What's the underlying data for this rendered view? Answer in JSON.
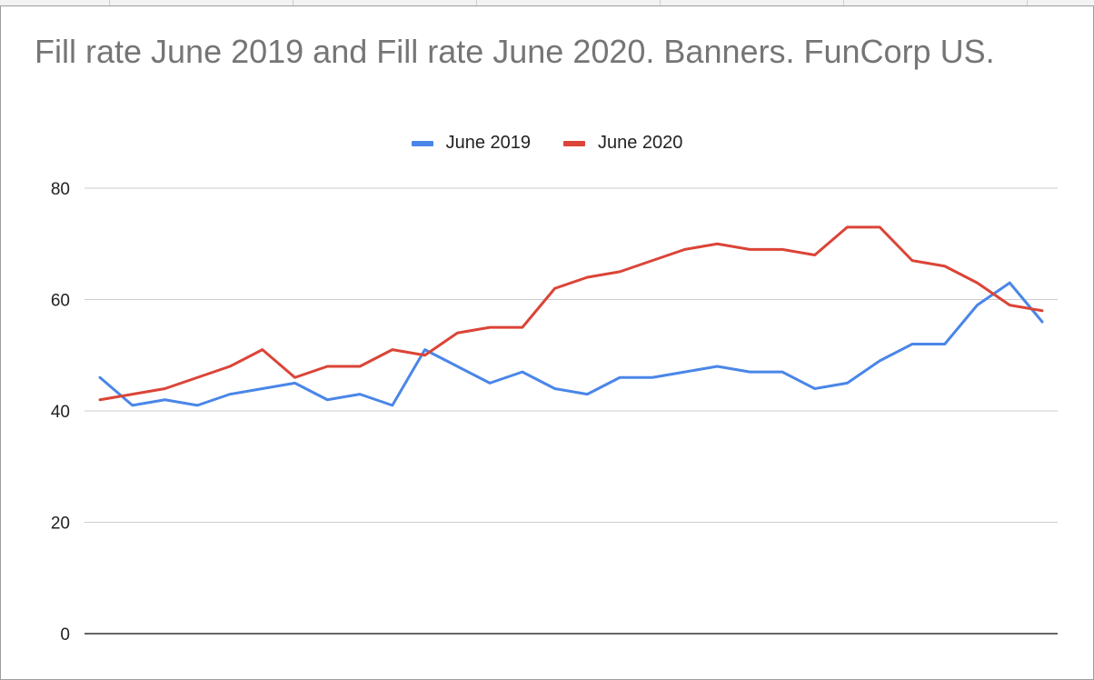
{
  "chart_data": {
    "type": "line",
    "title": "Fill rate June 2019 and Fill rate June 2020. Banners. FunCorp US.",
    "xlabel": "",
    "ylabel": "",
    "ylim": [
      0,
      80
    ],
    "yticks": [
      0,
      20,
      40,
      60,
      80
    ],
    "grid": true,
    "legend_position": "top",
    "x": [
      1,
      2,
      3,
      4,
      5,
      6,
      7,
      8,
      9,
      10,
      11,
      12,
      13,
      14,
      15,
      16,
      17,
      18,
      19,
      20,
      21,
      22,
      23,
      24,
      25,
      26,
      27,
      28,
      29,
      30
    ],
    "series": [
      {
        "name": "June 2019",
        "color": "#4a86e8",
        "values": [
          46,
          41,
          42,
          41,
          43,
          44,
          45,
          42,
          43,
          41,
          51,
          48,
          45,
          47,
          44,
          43,
          46,
          46,
          47,
          48,
          47,
          47,
          44,
          45,
          49,
          52,
          52,
          59,
          63,
          56
        ]
      },
      {
        "name": "June 2020",
        "color": "#db4437",
        "values": [
          42,
          43,
          44,
          46,
          48,
          51,
          46,
          48,
          48,
          51,
          50,
          54,
          55,
          55,
          62,
          64,
          65,
          67,
          69,
          70,
          69,
          69,
          68,
          73,
          73,
          67,
          66,
          63,
          59,
          58
        ]
      }
    ]
  }
}
